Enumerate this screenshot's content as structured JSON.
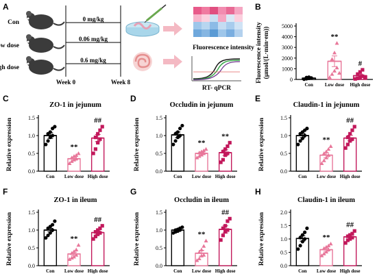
{
  "colors": {
    "con": "#000000",
    "low": "#e8779a",
    "high": "#c2185b"
  },
  "panels": {
    "A": {
      "label": "A",
      "groups": [
        {
          "name": "Con",
          "dose": "0 mg/kg"
        },
        {
          "name": "Low dose",
          "dose": "0.06 mg/kg"
        },
        {
          "name": "High dose",
          "dose": "0.6 mg/kg"
        }
      ],
      "week_start": "Week 0",
      "week_end": "Week 8",
      "assay_1": "Fluorescence  intensity",
      "assay_2": "RT- qPCR"
    }
  },
  "chart_data": [
    {
      "panel": "B",
      "type": "bar",
      "title": "",
      "ylabel": "Fluorescence intensity\n(μmol/(L·min·em))",
      "categories": [
        "Con",
        "Low dose",
        "High dose"
      ],
      "ylim": [
        0,
        5000
      ],
      "yticks": [
        0,
        1000,
        2000,
        3000,
        4000,
        5000
      ],
      "ytick_labels": [
        "0",
        "1000",
        "2000",
        "3000",
        "4000",
        "5000"
      ],
      "values": [
        120,
        1700,
        350
      ],
      "errors": [
        40,
        500,
        150
      ],
      "points": [
        [
          20,
          60,
          100,
          140,
          180,
          210
        ],
        [
          200,
          500,
          800,
          1100,
          1900,
          2500,
          3400,
          600
        ],
        [
          50,
          100,
          200,
          300,
          500,
          700,
          900,
          150
        ]
      ],
      "annotations": [
        "",
        "**",
        "#"
      ]
    },
    {
      "panel": "C",
      "type": "bar",
      "title": "ZO-1 in jejunum",
      "ylabel": "Relative expression",
      "categories": [
        "Con",
        "Low dose",
        "High dose"
      ],
      "ylim": [
        0,
        1.5
      ],
      "yticks": [
        0,
        0.5,
        1.0,
        1.5
      ],
      "ytick_labels": [
        "0.0",
        "0.5",
        "1.0",
        "1.5"
      ],
      "values": [
        1.0,
        0.35,
        0.93
      ],
      "errors": [
        0.08,
        0.04,
        0.1
      ],
      "points": [
        [
          0.75,
          0.85,
          0.95,
          1.0,
          1.05,
          1.1,
          1.2,
          1.25
        ],
        [
          0.22,
          0.28,
          0.32,
          0.35,
          0.38,
          0.42,
          0.45,
          0.5
        ],
        [
          0.5,
          0.62,
          0.8,
          0.9,
          0.95,
          1.05,
          1.15,
          1.25
        ]
      ],
      "annotations": [
        "",
        "**",
        "##"
      ]
    },
    {
      "panel": "D",
      "type": "bar",
      "title": "Occludin in jejunum",
      "ylabel": "Relative expression",
      "categories": [
        "Con",
        "Low dose",
        "High dose"
      ],
      "ylim": [
        0,
        1.5
      ],
      "yticks": [
        0,
        0.5,
        1.0,
        1.5
      ],
      "ytick_labels": [
        "0.0",
        "0.5",
        "1.0",
        "1.5"
      ],
      "values": [
        1.02,
        0.5,
        0.52
      ],
      "errors": [
        0.08,
        0.04,
        0.08
      ],
      "points": [
        [
          0.75,
          0.85,
          0.95,
          1.0,
          1.05,
          1.1,
          1.2,
          1.28
        ],
        [
          0.38,
          0.42,
          0.46,
          0.5,
          0.52,
          0.55,
          0.58,
          0.62
        ],
        [
          0.25,
          0.32,
          0.45,
          0.5,
          0.55,
          0.62,
          0.7,
          0.8
        ]
      ],
      "annotations": [
        "",
        "**",
        "**"
      ]
    },
    {
      "panel": "E",
      "type": "bar",
      "title": "Claudin-1 in jejunum",
      "ylabel": "Relative expression",
      "categories": [
        "Con",
        "Low dose",
        "High dose"
      ],
      "ylim": [
        0,
        1.5
      ],
      "yticks": [
        0,
        0.5,
        1.0,
        1.5
      ],
      "ytick_labels": [
        "0.0",
        "0.5",
        "1.0",
        "1.5"
      ],
      "values": [
        1.0,
        0.45,
        0.93
      ],
      "errors": [
        0.06,
        0.07,
        0.08
      ],
      "points": [
        [
          0.75,
          0.85,
          0.92,
          1.0,
          1.05,
          1.1,
          1.15,
          1.2
        ],
        [
          0.22,
          0.3,
          0.38,
          0.45,
          0.5,
          0.55,
          0.62,
          0.7
        ],
        [
          0.65,
          0.75,
          0.85,
          0.9,
          0.95,
          1.05,
          1.15,
          1.25
        ]
      ],
      "annotations": [
        "",
        "**",
        "##"
      ]
    },
    {
      "panel": "F",
      "type": "bar",
      "title": "ZO-1 in ileum",
      "ylabel": "Relative expression",
      "categories": [
        "Con",
        "Low dose",
        "High dose"
      ],
      "ylim": [
        0,
        1.5
      ],
      "yticks": [
        0,
        0.5,
        1.0,
        1.5
      ],
      "ytick_labels": [
        "0.0",
        "0.5",
        "1.0",
        "1.5"
      ],
      "values": [
        1.0,
        0.33,
        0.93
      ],
      "errors": [
        0.05,
        0.05,
        0.05
      ],
      "points": [
        [
          0.78,
          0.85,
          0.92,
          1.0,
          1.05,
          1.1,
          1.15,
          1.25
        ],
        [
          0.18,
          0.22,
          0.25,
          0.3,
          0.35,
          0.4,
          0.45,
          0.58
        ],
        [
          0.75,
          0.82,
          0.88,
          0.92,
          0.95,
          1.0,
          1.05,
          1.12
        ]
      ],
      "annotations": [
        "",
        "**",
        "##"
      ]
    },
    {
      "panel": "G",
      "type": "bar",
      "title": "Occludin in ileum",
      "ylabel": "Relative expression",
      "categories": [
        "Con",
        "Low dose",
        "High dose"
      ],
      "ylim": [
        0,
        1.5
      ],
      "yticks": [
        0,
        0.5,
        1.0,
        1.5
      ],
      "ytick_labels": [
        "0.0",
        "0.5",
        "1.0",
        "1.5"
      ],
      "values": [
        1.0,
        0.35,
        1.02
      ],
      "errors": [
        0.02,
        0.08,
        0.1
      ],
      "points": [
        [
          0.92,
          0.95,
          0.97,
          1.0,
          1.0,
          1.02,
          1.05,
          1.08
        ],
        [
          0.15,
          0.2,
          0.28,
          0.3,
          0.38,
          0.45,
          0.55,
          0.7
        ],
        [
          0.72,
          0.85,
          0.95,
          1.0,
          1.05,
          1.12,
          1.25,
          1.32
        ]
      ],
      "annotations": [
        "",
        "**",
        "##"
      ]
    },
    {
      "panel": "H",
      "type": "bar",
      "title": "Claudin-1 in ileum",
      "ylabel": "Relative expression",
      "categories": [
        "Con",
        "Low dose",
        "High dose"
      ],
      "ylim": [
        0,
        2.0
      ],
      "yticks": [
        0,
        0.5,
        1.0,
        1.5,
        2.0
      ],
      "ytick_labels": [
        "0.0",
        "0.5",
        "1.0",
        "1.5",
        "2.0"
      ],
      "values": [
        1.02,
        0.6,
        1.08
      ],
      "errors": [
        0.1,
        0.06,
        0.08
      ],
      "points": [
        [
          0.62,
          0.75,
          0.9,
          1.0,
          1.05,
          1.15,
          1.25,
          1.4
        ],
        [
          0.38,
          0.45,
          0.52,
          0.6,
          0.65,
          0.7,
          0.75,
          0.82
        ],
        [
          0.85,
          0.95,
          1.0,
          1.05,
          1.1,
          1.15,
          1.2,
          1.3
        ]
      ],
      "annotations": [
        "",
        "**",
        "##"
      ]
    }
  ]
}
